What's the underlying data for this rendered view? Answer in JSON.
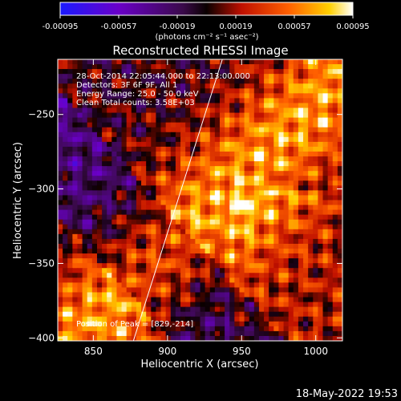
{
  "chart_data": {
    "type": "heatmap",
    "title": "Reconstructed RHESSI Image",
    "xlabel": "Heliocentric X (arcsec)",
    "ylabel": "Heliocentric Y (arcsec)",
    "xlim": [
      826,
      1018
    ],
    "ylim": [
      -402,
      -213
    ],
    "x_ticks": [
      850,
      900,
      950,
      1000
    ],
    "y_ticks": [
      -250,
      -300,
      -350,
      -400
    ],
    "colorbar": {
      "range": [
        -0.00095,
        0.00095
      ],
      "tick_values": [
        -0.00095,
        -0.00057,
        -0.00019,
        0.00019,
        0.00057,
        0.00095
      ],
      "tick_labels": [
        "-0.00095",
        "-0.00057",
        "-0.00019",
        "0.00019",
        "0.00057",
        "0.00095"
      ],
      "unit_label": "(photons cm⁻² s⁻¹ asec⁻²)",
      "colors": [
        "#1a1aff",
        "#6a00c8",
        "#3a0a4a",
        "#0a0000",
        "#c01000",
        "#ff6000",
        "#ffd000",
        "#ffffff"
      ]
    },
    "annotations": [
      "28-Oct-2014 22:05:44.000 to 22:13:00.000",
      "Detectors: 3F 6F 9F, All 1",
      "Energy Range: 25.0 - 50.0 keV",
      "Clean    Total counts: 3.58E+03"
    ],
    "peak_label": "Position of Peak = [829,-214]",
    "peak": [
      829,
      -214
    ],
    "limb_line": [
      [
        877,
        -402
      ],
      [
        937,
        -213
      ]
    ],
    "grid": false
  },
  "footer": {
    "timestamp": "18-May-2022 19:53"
  }
}
